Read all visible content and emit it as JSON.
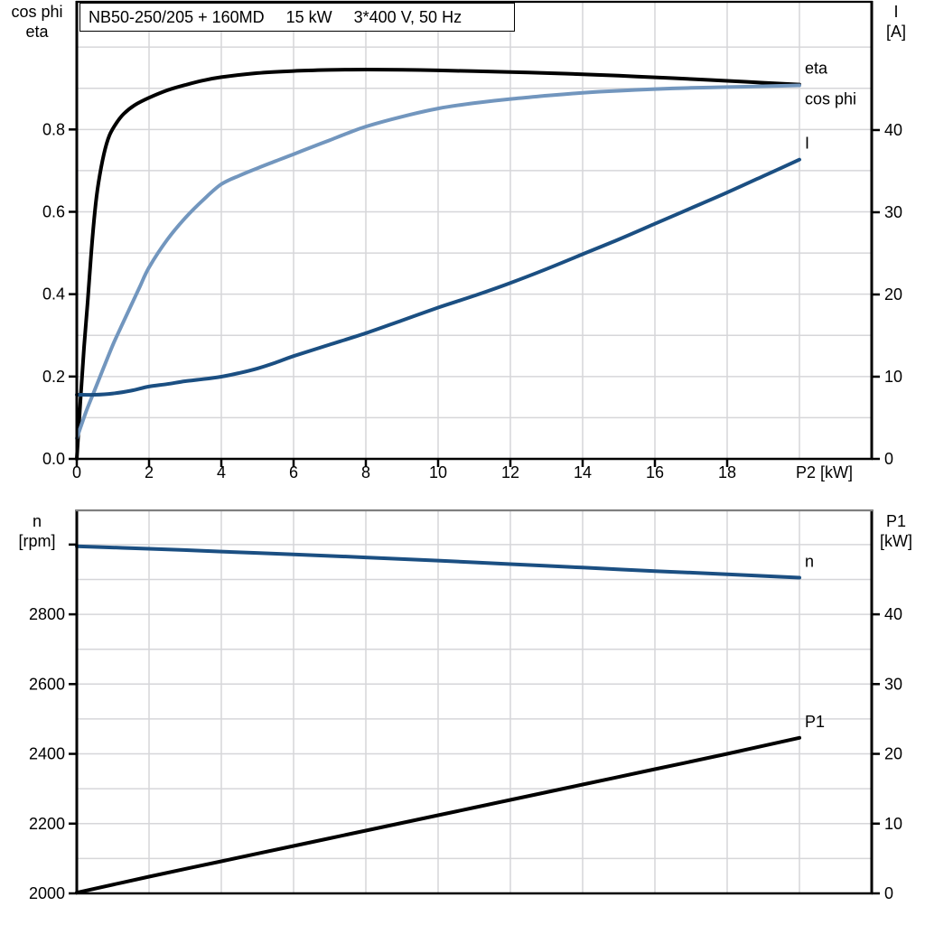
{
  "title_box": {
    "model": "NB50-250/205 + 160MD",
    "power": "15 kW",
    "voltage": "3*400 V, 50 Hz"
  },
  "colors": {
    "eta": "#000000",
    "cos_phi": "#7296BE",
    "current": "#1B4F82",
    "speed": "#1B4F82",
    "p1": "#000000",
    "grid": "#D6D6D9",
    "axis": "#000000",
    "frame_top_bottom_chart": "#7F7F7F"
  },
  "chart_data": [
    {
      "type": "line",
      "name": "motor-electrical-performance",
      "title": "NB50-250/205 + 160MD  15 kW  3*400 V, 50 Hz",
      "legend_position": "right-inside",
      "grid": true,
      "x_axis": {
        "label": "P2 [kW]",
        "min": 0,
        "max": 22,
        "ticks": [
          "0",
          "2",
          "4",
          "6",
          "8",
          "10",
          "12",
          "14",
          "16",
          "18"
        ],
        "grid_step": 2
      },
      "y_left": {
        "label_lines": [
          "cos phi",
          "eta"
        ],
        "min": 0,
        "max": 1.11,
        "ticks": [
          "0.0",
          "0.2",
          "0.4",
          "0.6",
          "0.8"
        ],
        "grid_step": 0.1
      },
      "y_right": {
        "label_lines": [
          "I",
          "[A]"
        ],
        "min": 0,
        "max": 55.6,
        "ticks": [
          "0",
          "10",
          "20",
          "30",
          "40"
        ]
      },
      "series": [
        {
          "name": "eta",
          "label": "eta",
          "axis": "left",
          "color_key": "eta",
          "label_side": "above",
          "points": [
            [
              0,
              0
            ],
            [
              0.1,
              0.14
            ],
            [
              0.2,
              0.27
            ],
            [
              0.3,
              0.38
            ],
            [
              0.4,
              0.5
            ],
            [
              0.5,
              0.6
            ],
            [
              0.6,
              0.67
            ],
            [
              0.75,
              0.74
            ],
            [
              0.9,
              0.785
            ],
            [
              1.1,
              0.816
            ],
            [
              1.3,
              0.838
            ],
            [
              1.6,
              0.859
            ],
            [
              2,
              0.877
            ],
            [
              2.5,
              0.895
            ],
            [
              3,
              0.908
            ],
            [
              3.5,
              0.919
            ],
            [
              4,
              0.927
            ],
            [
              5,
              0.937
            ],
            [
              6,
              0.942
            ],
            [
              7,
              0.9445
            ],
            [
              8,
              0.9455
            ],
            [
              9,
              0.945
            ],
            [
              10,
              0.9435
            ],
            [
              11,
              0.9415
            ],
            [
              12,
              0.9395
            ],
            [
              13,
              0.937
            ],
            [
              14,
              0.934
            ],
            [
              15,
              0.9305
            ],
            [
              16,
              0.9265
            ],
            [
              17,
              0.9225
            ],
            [
              18,
              0.918
            ],
            [
              19,
              0.9135
            ],
            [
              20,
              0.909
            ]
          ]
        },
        {
          "name": "cos phi",
          "label": "cos phi",
          "axis": "left",
          "color_key": "cos_phi",
          "label_side": "below",
          "points": [
            [
              0,
              0.05
            ],
            [
              0.25,
              0.113
            ],
            [
              0.5,
              0.168
            ],
            [
              0.75,
              0.223
            ],
            [
              1,
              0.277
            ],
            [
              1.25,
              0.325
            ],
            [
              1.5,
              0.372
            ],
            [
              1.75,
              0.419
            ],
            [
              2,
              0.465
            ],
            [
              2.5,
              0.532
            ],
            [
              3,
              0.585
            ],
            [
              3.5,
              0.629
            ],
            [
              4,
              0.667
            ],
            [
              4.5,
              0.688
            ],
            [
              5,
              0.706
            ],
            [
              5.5,
              0.723
            ],
            [
              6,
              0.74
            ],
            [
              6.5,
              0.757
            ],
            [
              7,
              0.774
            ],
            [
              7.5,
              0.791
            ],
            [
              8,
              0.807
            ],
            [
              9,
              0.831
            ],
            [
              10,
              0.851
            ],
            [
              11,
              0.864
            ],
            [
              12,
              0.874
            ],
            [
              13,
              0.882
            ],
            [
              14,
              0.889
            ],
            [
              15,
              0.894
            ],
            [
              16,
              0.898
            ],
            [
              17,
              0.901
            ],
            [
              18,
              0.903
            ],
            [
              19,
              0.905
            ],
            [
              20,
              0.907
            ]
          ]
        },
        {
          "name": "I",
          "label": "I",
          "axis": "right",
          "color_key": "current",
          "label_side": "above",
          "points": [
            [
              0,
              7.8
            ],
            [
              0.5,
              7.8
            ],
            [
              1,
              7.95
            ],
            [
              1.5,
              8.3
            ],
            [
              2,
              8.8
            ],
            [
              2.5,
              9.1
            ],
            [
              3,
              9.45
            ],
            [
              3.5,
              9.7
            ],
            [
              4,
              10.0
            ],
            [
              4.5,
              10.45
            ],
            [
              5,
              11.0
            ],
            [
              5.5,
              11.7
            ],
            [
              6,
              12.5
            ],
            [
              7,
              13.9
            ],
            [
              8,
              15.3
            ],
            [
              9,
              16.85
            ],
            [
              10,
              18.4
            ],
            [
              11,
              19.85
            ],
            [
              12,
              21.4
            ],
            [
              13,
              23.1
            ],
            [
              14,
              24.9
            ],
            [
              15,
              26.7
            ],
            [
              16,
              28.6
            ],
            [
              17,
              30.5
            ],
            [
              18,
              32.4
            ],
            [
              19,
              34.4
            ],
            [
              20,
              36.4
            ]
          ]
        }
      ]
    },
    {
      "type": "line",
      "name": "speed-and-input-power",
      "legend_position": "right-inside",
      "grid": true,
      "x_axis": {
        "label": "",
        "min": 0,
        "max": 22,
        "ticks": [],
        "grid_step": 2
      },
      "y_left": {
        "label_lines": [
          "n",
          "[rpm]"
        ],
        "min": 2000,
        "max": 3098,
        "ticks": [
          "2000",
          "2200",
          "2400",
          "2600",
          "2800"
        ],
        "grid_step": 100,
        "extra_unlabeled_ticks": [
          3000
        ]
      },
      "y_right": {
        "label_lines": [
          "P1",
          "[kW]"
        ],
        "min": 0,
        "max": 54.9,
        "ticks": [
          "0",
          "10",
          "20",
          "30",
          "40"
        ]
      },
      "series": [
        {
          "name": "n",
          "label": "n",
          "axis": "left",
          "color_key": "speed",
          "label_side": "above",
          "points": [
            [
              0,
              2995
            ],
            [
              2,
              2988
            ],
            [
              4,
              2980
            ],
            [
              6,
              2972
            ],
            [
              8,
              2963
            ],
            [
              10,
              2954
            ],
            [
              12,
              2944
            ],
            [
              14,
              2934
            ],
            [
              16,
              2924
            ],
            [
              18,
              2915
            ],
            [
              20,
              2905
            ]
          ]
        },
        {
          "name": "P1",
          "label": "P1",
          "axis": "right",
          "color_key": "p1",
          "label_side": "above",
          "points": [
            [
              0,
              0.1
            ],
            [
              2,
              2.4
            ],
            [
              4,
              4.6
            ],
            [
              6,
              6.8
            ],
            [
              8,
              9.0
            ],
            [
              10,
              11.2
            ],
            [
              12,
              13.4
            ],
            [
              14,
              15.6
            ],
            [
              16,
              17.8
            ],
            [
              18,
              20.0
            ],
            [
              20,
              22.3
            ]
          ]
        }
      ]
    }
  ]
}
